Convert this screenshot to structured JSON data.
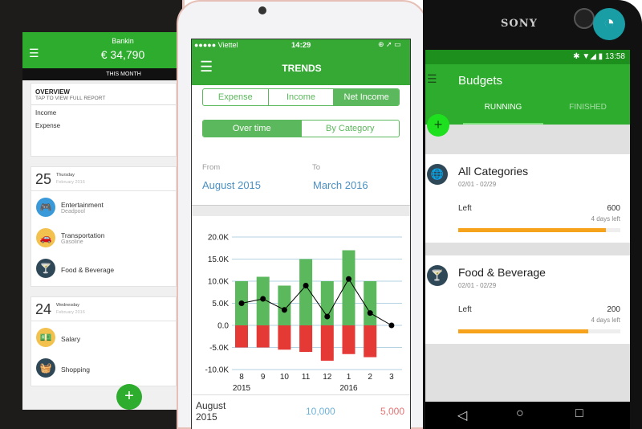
{
  "left_phone": {
    "app_name": "Bankin",
    "balance": "€ 34,790",
    "period": "THIS MONTH",
    "overview": {
      "title": "OVERVIEW",
      "subtitle": "TAP TO VIEW FULL REPORT",
      "rows": [
        "Income",
        "Expense"
      ]
    },
    "days": [
      {
        "day": "25",
        "weekday": "Thursday",
        "month": "February 2016",
        "items": [
          {
            "name": "Entertainment",
            "sub": "Deadpool",
            "icon": "gamepad-icon",
            "color": "#3a9ad9"
          },
          {
            "name": "Transportation",
            "sub": "Gasoline",
            "icon": "car-icon",
            "color": "#f2c14e"
          },
          {
            "name": "Food & Beverage",
            "sub": "",
            "icon": "cocktail-icon",
            "color": "#2f4858"
          }
        ]
      },
      {
        "day": "24",
        "weekday": "Wednesday",
        "month": "February 2016",
        "items": [
          {
            "name": "Salary",
            "sub": "",
            "icon": "money-icon",
            "color": "#f2c14e"
          },
          {
            "name": "Shopping",
            "sub": "",
            "icon": "basket-icon",
            "color": "#2f4858"
          }
        ]
      }
    ],
    "fab": "+"
  },
  "middle_phone": {
    "status": {
      "carrier": "●●●●● Viettel",
      "time": "14:29"
    },
    "title": "TRENDS",
    "type_tabs": [
      {
        "label": "Expense",
        "active": false
      },
      {
        "label": "Income",
        "active": false
      },
      {
        "label": "Net Income",
        "active": true
      }
    ],
    "view_tabs": [
      {
        "label": "Over time",
        "active": true
      },
      {
        "label": "By Category",
        "active": false
      }
    ],
    "from_label": "From",
    "from_value": "August 2015",
    "to_label": "To",
    "to_value": "March 2016",
    "footer": {
      "period_line1": "August",
      "period_line2": "2015",
      "income": "10,000",
      "expense": "5,000"
    }
  },
  "chart_data": {
    "type": "bar",
    "categories": [
      "8",
      "9",
      "10",
      "11",
      "12",
      "1",
      "2",
      "3"
    ],
    "year_labels": [
      {
        "at": "8",
        "label": "2015"
      },
      {
        "at": "1",
        "label": "2016"
      }
    ],
    "series": [
      {
        "kind": "bar",
        "color": "#5cb85c",
        "values": [
          10000,
          11000,
          9000,
          15000,
          10000,
          17000,
          10000,
          0
        ]
      },
      {
        "kind": "bar",
        "color": "#e53935",
        "values": [
          -5000,
          -5000,
          -5500,
          -6000,
          -8000,
          -6500,
          -7200,
          0
        ]
      },
      {
        "kind": "line",
        "color": "#000000",
        "values": [
          5000,
          6000,
          3500,
          9000,
          2000,
          10500,
          2800,
          0
        ]
      }
    ],
    "yticks": [
      "20.0K",
      "15.0K",
      "10.0K",
      "5.0K",
      "0.0",
      "-5.0K",
      "-10.0K"
    ],
    "ylim": [
      -10000,
      20000
    ],
    "grid": true
  },
  "right_phone": {
    "brand": "SONY",
    "status_time": "13:58",
    "title": "Budgets",
    "tabs": [
      {
        "label": "RUNNING",
        "active": true
      },
      {
        "label": "FINISHED",
        "active": false
      }
    ],
    "budgets": [
      {
        "name": "All Categories",
        "dates": "02/01 - 02/29",
        "left_label": "Left",
        "amount": "600",
        "days_left": "4 days left",
        "progress": 0.91,
        "icon": "globe-icon"
      },
      {
        "name": "Food & Beverage",
        "dates": "02/01 - 02/29",
        "left_label": "Left",
        "amount": "200",
        "days_left": "4 days left",
        "progress": 0.8,
        "icon": "cocktail-icon"
      }
    ],
    "fab": "+",
    "accent": "#2eac2e",
    "progress_color": "#f7a21b"
  }
}
